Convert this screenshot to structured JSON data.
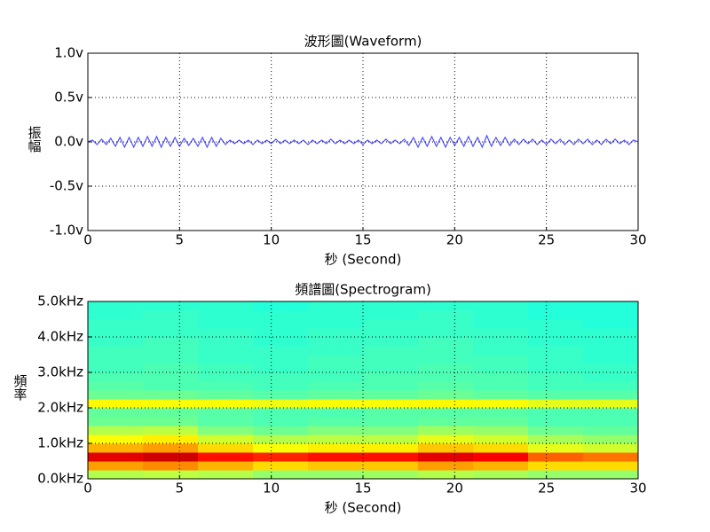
{
  "chart_data": [
    {
      "type": "line",
      "title": "波形圖(Waveform)",
      "xlabel": "秒 (Second)",
      "ylabel": "振幅",
      "color": "#5050ff",
      "grid": true,
      "x": [
        0,
        0.25,
        0.5,
        0.75,
        1,
        1.25,
        1.5,
        1.75,
        2,
        2.25,
        2.5,
        2.75,
        3,
        3.25,
        3.5,
        3.75,
        4,
        4.25,
        4.5,
        4.75,
        5,
        5.25,
        5.5,
        5.75,
        6,
        6.25,
        6.5,
        6.75,
        7,
        7.25,
        7.5,
        7.75,
        8,
        8.25,
        8.5,
        8.75,
        9,
        9.25,
        9.5,
        9.75,
        10,
        10.25,
        10.5,
        10.75,
        11,
        11.25,
        11.5,
        11.75,
        12,
        12.25,
        12.5,
        12.75,
        13,
        13.25,
        13.5,
        13.75,
        14,
        14.25,
        14.5,
        14.75,
        15,
        15.25,
        15.5,
        15.75,
        16,
        16.25,
        16.5,
        16.75,
        17,
        17.25,
        17.5,
        17.75,
        18,
        18.25,
        18.5,
        18.75,
        19,
        19.25,
        19.5,
        19.75,
        20,
        20.25,
        20.5,
        20.75,
        21,
        21.25,
        21.5,
        21.75,
        22,
        22.25,
        22.5,
        22.75,
        23,
        23.25,
        23.5,
        23.75,
        24,
        24.25,
        24.5,
        24.75,
        25,
        25.25,
        25.5,
        25.75,
        26,
        26.25,
        26.5,
        26.75,
        27,
        27.25,
        27.5,
        27.75,
        28,
        28.25,
        28.5,
        28.75,
        29,
        29.25,
        29.5,
        29.75,
        30
      ],
      "values": [
        0,
        0.02,
        -0.03,
        0.03,
        -0.03,
        0.04,
        -0.05,
        0.05,
        -0.06,
        0.05,
        -0.06,
        0.05,
        -0.05,
        0.06,
        -0.05,
        0.06,
        -0.06,
        0.05,
        -0.05,
        0.05,
        -0.05,
        0.04,
        -0.04,
        0.04,
        -0.05,
        0.05,
        -0.06,
        0.05,
        -0.05,
        0.04,
        -0.03,
        0.02,
        -0.02,
        0.02,
        -0.02,
        0.02,
        -0.03,
        0.02,
        -0.02,
        0.02,
        -0.02,
        0.03,
        -0.02,
        0.02,
        -0.02,
        0.02,
        -0.02,
        0.02,
        -0.03,
        0.02,
        -0.02,
        0.02,
        -0.02,
        0.03,
        -0.02,
        0.02,
        -0.02,
        0.02,
        -0.02,
        0.02,
        -0.03,
        0.02,
        -0.02,
        0.02,
        -0.02,
        0.03,
        -0.02,
        0.02,
        -0.02,
        0.03,
        -0.04,
        0.05,
        -0.06,
        0.05,
        -0.05,
        0.06,
        -0.05,
        0.05,
        -0.06,
        0.05,
        -0.04,
        0.05,
        -0.05,
        0.06,
        -0.05,
        0.05,
        -0.06,
        0.07,
        -0.05,
        0.05,
        -0.04,
        0.05,
        -0.04,
        0.03,
        -0.03,
        0.03,
        -0.02,
        0.03,
        -0.03,
        0.02,
        -0.03,
        0.03,
        -0.02,
        0.03,
        -0.03,
        0.02,
        -0.03,
        0.03,
        -0.02,
        0.03,
        -0.03,
        0.02,
        -0.03,
        0.03,
        -0.02,
        0.03,
        -0.02,
        0.02,
        -0.03,
        0.02,
        0
      ],
      "xlim": [
        0,
        30
      ],
      "xticks": [
        0,
        5,
        10,
        15,
        20,
        25,
        30
      ],
      "ylim": [
        -1,
        1
      ],
      "yticks": [
        {
          "value": -1,
          "label": "-1.0v"
        },
        {
          "value": -0.5,
          "label": "-0.5v"
        },
        {
          "value": 0,
          "label": "0.0v"
        },
        {
          "value": 0.5,
          "label": "0.5v"
        },
        {
          "value": 1,
          "label": "1.0v"
        }
      ]
    },
    {
      "type": "heatmap",
      "title": "頻譜圖(Spectrogram)",
      "xlabel": "秒 (Second)",
      "ylabel": "頻率",
      "colormap": "jet",
      "grid": true,
      "time_bins": [
        0,
        3,
        6,
        9,
        12,
        15,
        18,
        21,
        24,
        27,
        30
      ],
      "freq_bins": [
        0,
        0.25,
        0.5,
        0.75,
        1,
        1.25,
        1.5,
        1.75,
        2,
        2.25,
        2.5,
        2.75,
        3,
        3.25,
        3.5,
        3.75,
        4,
        4.25,
        4.5,
        4.75,
        5
      ],
      "zlim": [
        0,
        1
      ],
      "z": [
        [
          0.55,
          0.56,
          0.55,
          0.52,
          0.52,
          0.53,
          0.55,
          0.54,
          0.52,
          0.52
        ],
        [
          0.72,
          0.74,
          0.7,
          0.66,
          0.68,
          0.68,
          0.72,
          0.7,
          0.66,
          0.66
        ],
        [
          0.9,
          0.92,
          0.86,
          0.84,
          0.86,
          0.86,
          0.9,
          0.88,
          0.78,
          0.76
        ],
        [
          0.7,
          0.72,
          0.66,
          0.62,
          0.64,
          0.64,
          0.68,
          0.66,
          0.6,
          0.58
        ],
        [
          0.62,
          0.64,
          0.58,
          0.55,
          0.56,
          0.56,
          0.6,
          0.58,
          0.54,
          0.52
        ],
        [
          0.55,
          0.56,
          0.5,
          0.48,
          0.5,
          0.5,
          0.53,
          0.52,
          0.48,
          0.47
        ],
        [
          0.48,
          0.48,
          0.46,
          0.45,
          0.46,
          0.46,
          0.47,
          0.47,
          0.45,
          0.45
        ],
        [
          0.47,
          0.47,
          0.46,
          0.45,
          0.45,
          0.46,
          0.46,
          0.46,
          0.45,
          0.45
        ],
        [
          0.63,
          0.62,
          0.62,
          0.61,
          0.62,
          0.62,
          0.63,
          0.62,
          0.6,
          0.6
        ],
        [
          0.48,
          0.48,
          0.47,
          0.46,
          0.47,
          0.47,
          0.48,
          0.47,
          0.46,
          0.46
        ],
        [
          0.46,
          0.45,
          0.45,
          0.44,
          0.45,
          0.45,
          0.46,
          0.45,
          0.44,
          0.44
        ],
        [
          0.45,
          0.45,
          0.44,
          0.44,
          0.44,
          0.45,
          0.45,
          0.45,
          0.44,
          0.43
        ],
        [
          0.44,
          0.45,
          0.44,
          0.43,
          0.44,
          0.44,
          0.45,
          0.44,
          0.43,
          0.43
        ],
        [
          0.44,
          0.44,
          0.43,
          0.43,
          0.44,
          0.44,
          0.44,
          0.44,
          0.43,
          0.42
        ],
        [
          0.44,
          0.44,
          0.43,
          0.43,
          0.43,
          0.44,
          0.44,
          0.43,
          0.43,
          0.42
        ],
        [
          0.43,
          0.44,
          0.43,
          0.42,
          0.43,
          0.43,
          0.44,
          0.43,
          0.42,
          0.42
        ],
        [
          0.43,
          0.43,
          0.43,
          0.42,
          0.43,
          0.43,
          0.43,
          0.43,
          0.42,
          0.42
        ],
        [
          0.43,
          0.43,
          0.42,
          0.42,
          0.42,
          0.43,
          0.43,
          0.42,
          0.42,
          0.41
        ],
        [
          0.42,
          0.43,
          0.42,
          0.42,
          0.42,
          0.42,
          0.43,
          0.42,
          0.41,
          0.41
        ],
        [
          0.42,
          0.42,
          0.42,
          0.41,
          0.42,
          0.42,
          0.42,
          0.42,
          0.41,
          0.41
        ]
      ],
      "xlim": [
        0,
        30
      ],
      "xticks": [
        0,
        5,
        10,
        15,
        20,
        25,
        30
      ],
      "ylim": [
        0,
        5
      ],
      "yticks": [
        {
          "value": 0,
          "label": "0.0kHz"
        },
        {
          "value": 1,
          "label": "1.0kHz"
        },
        {
          "value": 2,
          "label": "2.0kHz"
        },
        {
          "value": 3,
          "label": "3.0kHz"
        },
        {
          "value": 4,
          "label": "4.0kHz"
        },
        {
          "value": 5,
          "label": "5.0kHz"
        }
      ]
    }
  ]
}
